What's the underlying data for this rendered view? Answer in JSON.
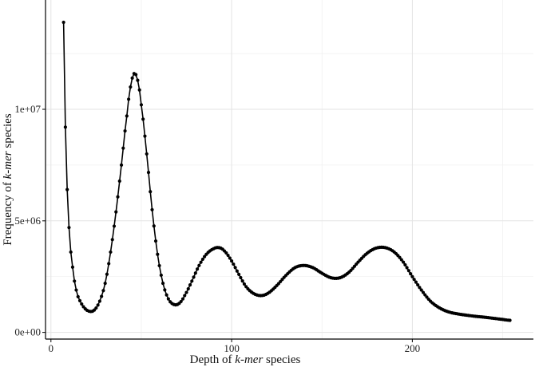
{
  "chart_data": {
    "type": "line",
    "xlabel": {
      "prefix": "Depth of ",
      "em": "k-mer",
      "suffix": " species"
    },
    "ylabel": {
      "prefix": "Frequency of ",
      "em": "k-mer",
      "suffix": " species"
    },
    "xlim": [
      -3,
      267
    ],
    "ylim": [
      -300000,
      14900000
    ],
    "x_ticks": [
      0,
      100,
      200
    ],
    "x_tick_labels": [
      "0",
      "100",
      "200"
    ],
    "x_minor_ticks": [
      50,
      150,
      250
    ],
    "y_ticks": [
      0,
      5000000,
      10000000
    ],
    "y_tick_labels": [
      "0e+00",
      "5e+06",
      "1e+07"
    ],
    "y_minor_ticks": [
      2500000,
      7500000,
      12500000
    ],
    "grid": true,
    "series": [
      {
        "points": [
          [
            7,
            13900000
          ],
          [
            8,
            9200000
          ],
          [
            9,
            6400000
          ],
          [
            10,
            4700000
          ],
          [
            11,
            3600000
          ],
          [
            13,
            2300000
          ],
          [
            15,
            1600000
          ],
          [
            18,
            1150000
          ],
          [
            21,
            950000
          ],
          [
            24,
            1000000
          ],
          [
            27,
            1400000
          ],
          [
            30,
            2200000
          ],
          [
            33,
            3600000
          ],
          [
            36,
            5400000
          ],
          [
            39,
            7500000
          ],
          [
            42,
            9700000
          ],
          [
            44,
            11000000
          ],
          [
            46,
            11600000
          ],
          [
            48,
            11300000
          ],
          [
            50,
            10200000
          ],
          [
            53,
            8000000
          ],
          [
            56,
            5500000
          ],
          [
            59,
            3500000
          ],
          [
            62,
            2200000
          ],
          [
            65,
            1500000
          ],
          [
            68,
            1250000
          ],
          [
            71,
            1300000
          ],
          [
            74,
            1650000
          ],
          [
            78,
            2300000
          ],
          [
            82,
            3000000
          ],
          [
            86,
            3500000
          ],
          [
            90,
            3750000
          ],
          [
            93,
            3800000
          ],
          [
            96,
            3650000
          ],
          [
            100,
            3200000
          ],
          [
            104,
            2600000
          ],
          [
            108,
            2050000
          ],
          [
            112,
            1750000
          ],
          [
            116,
            1650000
          ],
          [
            120,
            1750000
          ],
          [
            125,
            2100000
          ],
          [
            130,
            2550000
          ],
          [
            135,
            2900000
          ],
          [
            140,
            3000000
          ],
          [
            145,
            2900000
          ],
          [
            150,
            2650000
          ],
          [
            155,
            2450000
          ],
          [
            160,
            2450000
          ],
          [
            165,
            2700000
          ],
          [
            170,
            3150000
          ],
          [
            175,
            3550000
          ],
          [
            180,
            3780000
          ],
          [
            185,
            3800000
          ],
          [
            190,
            3600000
          ],
          [
            195,
            3150000
          ],
          [
            200,
            2500000
          ],
          [
            205,
            1900000
          ],
          [
            210,
            1400000
          ],
          [
            215,
            1100000
          ],
          [
            220,
            920000
          ],
          [
            225,
            830000
          ],
          [
            230,
            770000
          ],
          [
            235,
            720000
          ],
          [
            240,
            680000
          ],
          [
            245,
            630000
          ],
          [
            250,
            580000
          ],
          [
            254,
            540000
          ]
        ]
      }
    ]
  }
}
